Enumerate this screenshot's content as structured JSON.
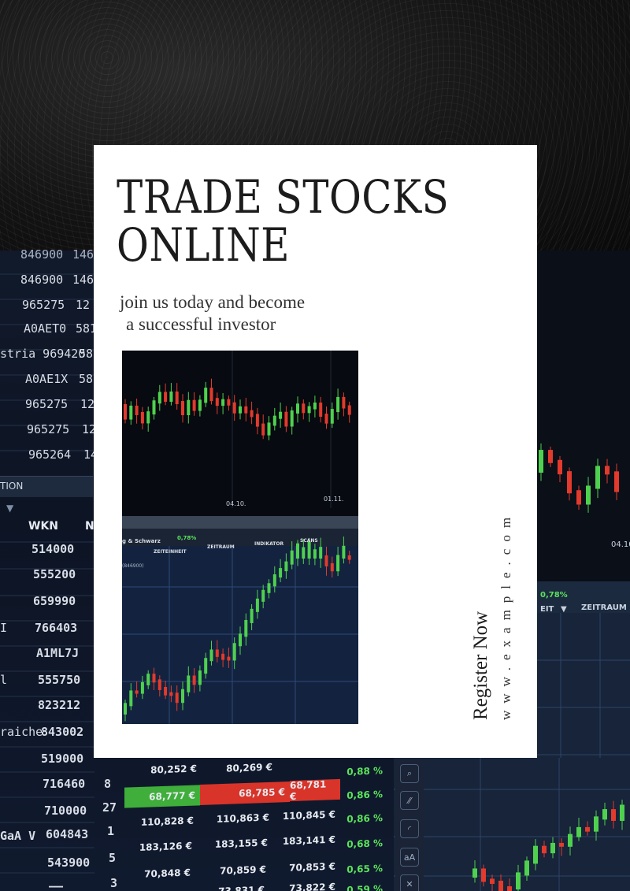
{
  "card": {
    "headline_line1": "TRADE STOCKS",
    "headline_line2": "ONLINE",
    "subline_line1": "join us today and become",
    "subline_line2": "a successful investor"
  },
  "cta": {
    "register_label": "Register Now",
    "url": "www.example.com"
  },
  "background": {
    "left_numbers_top": [
      "846900",
      "846900",
      "965275",
      "A0AET0",
      "stria 969420",
      "A0AE1X",
      "965275",
      "965275",
      "965264"
    ],
    "left_numbers_top_suffix": [
      "146",
      "146",
      "12",
      "581",
      "581",
      "58",
      "12",
      "12",
      "14"
    ],
    "tab_label": "TION",
    "wkn_header": "WKN",
    "wkn_header_suffix": "N",
    "wkn_values": [
      "514000",
      "555200",
      "659990",
      "766403",
      "A1ML7J",
      "555750",
      "823212",
      "843002",
      "519000",
      "716460",
      "710000",
      "604843",
      "543900",
      "——"
    ],
    "wkn_prefixes": [
      "",
      "",
      "",
      "I",
      "",
      "l",
      "",
      "raiche",
      "",
      "",
      "",
      "GaA V",
      "",
      ""
    ],
    "qty": [
      "",
      "",
      "",
      "",
      "",
      "",
      "",
      "",
      "",
      "8",
      "27",
      "1",
      "5",
      "3"
    ],
    "price_rows": [
      [
        "80,252 €",
        "80,269 €",
        "",
        "0,88 %"
      ],
      [
        "68,777 €",
        "68,785 €",
        "68,781 €",
        "0,86 %"
      ],
      [
        "110,828 €",
        "110,863 €",
        "110,845 €",
        "0,86 %"
      ],
      [
        "183,126 €",
        "183,155 €",
        "183,141 €",
        "0,68 %"
      ],
      [
        "70,848 €",
        "70,859 €",
        "70,853 €",
        "0,65 %"
      ],
      [
        "",
        "73,831 €",
        "73,822 €",
        "0,59 %"
      ]
    ],
    "right_chart_labels": [
      "04.10",
      "0,78%",
      "EIT",
      "ZEITRAUM"
    ],
    "photo_chart_labels": [
      "04.10.",
      "01.11.",
      "g & Schwarz",
      "0,78%",
      "ZEITEINHEIT",
      "ZEITRAUM",
      "INDIKATOR",
      "SCANS",
      "(846900)"
    ]
  },
  "colors": {
    "up": "#4fd14f",
    "down": "#e23a2c",
    "card": "#ffffff",
    "text": "#1c1c1c"
  }
}
